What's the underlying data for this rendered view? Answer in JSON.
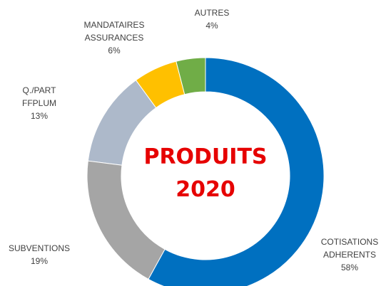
{
  "chart_data": {
    "type": "donut",
    "title_lines": [
      "PRODUITS",
      "2020"
    ],
    "categories": [
      "COTISATIONS\nADHERENTS",
      "SUBVENTIONS",
      "Q./PART\nFFPLUM",
      "MANDATAIRES\nASSURANCES",
      "AUTRES"
    ],
    "values": [
      58,
      19,
      13,
      6,
      4
    ],
    "value_labels": [
      "58%",
      "19%",
      "13%",
      "6%",
      "4%"
    ],
    "colors": [
      "#0070c0",
      "#a5a5a5",
      "#adb9ca",
      "#ffc000",
      "#70ad47"
    ]
  }
}
